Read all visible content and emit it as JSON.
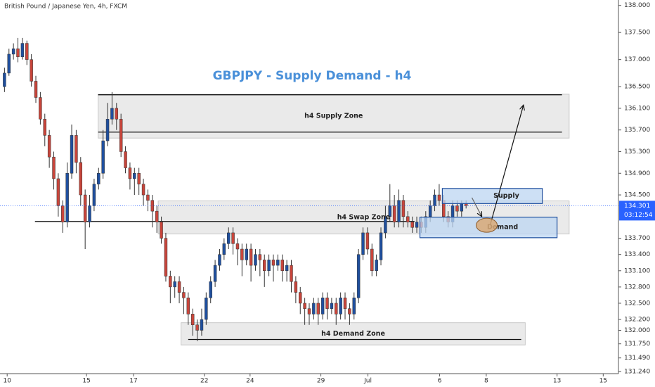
{
  "chart_data": {
    "type": "candlestick",
    "header": "British Pound / Japanese Yen, 4h, FXCM",
    "title": "GBPJPY - Supply Demand - h4",
    "up_color": "#1f4f9e",
    "down_color": "#c8453b",
    "xlim": [
      -1,
      137
    ],
    "ylim": [
      131.2,
      138.1
    ],
    "xticks": [
      {
        "value": 0.6,
        "label": "10"
      },
      {
        "value": 18.3,
        "label": "15"
      },
      {
        "value": 28.8,
        "label": "17"
      },
      {
        "value": 44.6,
        "label": "22"
      },
      {
        "value": 54.8,
        "label": "24"
      },
      {
        "value": 70.6,
        "label": "29"
      },
      {
        "value": 81.1,
        "label": "Jul"
      },
      {
        "value": 97.1,
        "label": "6"
      },
      {
        "value": 107.5,
        "label": "8"
      },
      {
        "value": 123.3,
        "label": "13"
      },
      {
        "value": 133.6,
        "label": "15"
      }
    ],
    "yticks": [
      {
        "value": 138,
        "label": "138.000"
      },
      {
        "value": 137.5,
        "label": "137.500"
      },
      {
        "value": 137,
        "label": "137.000"
      },
      {
        "value": 136.5,
        "label": "136.500"
      },
      {
        "value": 136.1,
        "label": "136.100"
      },
      {
        "value": 135.7,
        "label": "135.700"
      },
      {
        "value": 135.3,
        "label": "135.300"
      },
      {
        "value": 134.9,
        "label": "134.900"
      },
      {
        "value": 134.5,
        "label": "134.500"
      },
      {
        "value": 133.7,
        "label": "133.700"
      },
      {
        "value": 133.4,
        "label": "133.400"
      },
      {
        "value": 133.1,
        "label": "133.100"
      },
      {
        "value": 132.8,
        "label": "132.800"
      },
      {
        "value": 132.5,
        "label": "132.500"
      },
      {
        "value": 132.2,
        "label": "132.200"
      },
      {
        "value": 132,
        "label": "132.000"
      },
      {
        "value": 131.75,
        "label": "131.750"
      },
      {
        "value": 131.49,
        "label": "131.490"
      },
      {
        "value": 131.24,
        "label": "131.240"
      }
    ],
    "last_price": {
      "value": 134.301,
      "label": "134.301",
      "countdown": "03:12:54",
      "color": "#2962ff"
    },
    "open": [
      136.5,
      136.75,
      137.1,
      137.2,
      137.05,
      137.3,
      137,
      136.6,
      136.3,
      135.9,
      135.6,
      135.2,
      134.8,
      134.3,
      134,
      134.9,
      135.6,
      135.1,
      134.5,
      134,
      134.3,
      134.7,
      134.9,
      135.5,
      135.9,
      136.1,
      135.9,
      135.3,
      135,
      134.8,
      134.9,
      134.7,
      134.5,
      134.4,
      134.2,
      134,
      133.7,
      133,
      132.8,
      132.9,
      132.7,
      132.6,
      132.3,
      132.1,
      132,
      132.2,
      132.6,
      132.9,
      133.2,
      133.4,
      133.6,
      133.8,
      133.6,
      133.5,
      133.3,
      133.5,
      133.2,
      133.4,
      133.3,
      133.1,
      133.3,
      133.2,
      133.3,
      133.1,
      133.2,
      132.9,
      132.7,
      132.5,
      132.4,
      132.3,
      132.5,
      132.3,
      132.6,
      132.4,
      132.5,
      132.3,
      132.6,
      132.4,
      132.3,
      132.6,
      133.4,
      133.8,
      133.5,
      133.1,
      133.3,
      133.8,
      134.1,
      134.3,
      134,
      134.4,
      134.1,
      134,
      133.9,
      134,
      133.9,
      134.1,
      134.3,
      134.5,
      134.4,
      134.1,
      134,
      134.3,
      134.2,
      134.35
    ],
    "high": [
      136.85,
      137.2,
      137.3,
      137.4,
      137.4,
      137.35,
      137.1,
      136.7,
      136.4,
      136,
      135.7,
      135.3,
      134.9,
      134.4,
      135.1,
      135.8,
      135.7,
      135.2,
      134.6,
      134.5,
      134.8,
      135,
      135.7,
      136.2,
      136.4,
      136.2,
      136,
      135.4,
      135.1,
      135,
      135,
      134.8,
      134.6,
      134.5,
      134.3,
      134.1,
      133.8,
      133.1,
      133,
      133,
      132.8,
      132.7,
      132.4,
      132.2,
      132.4,
      132.7,
      133,
      133.3,
      133.5,
      133.7,
      133.9,
      133.9,
      133.7,
      133.6,
      133.6,
      133.6,
      133.5,
      133.5,
      133.4,
      133.4,
      133.4,
      133.4,
      133.4,
      133.3,
      133.3,
      133,
      132.8,
      132.6,
      132.5,
      132.6,
      132.6,
      132.7,
      132.7,
      132.6,
      132.6,
      132.7,
      132.7,
      132.5,
      132.7,
      133.5,
      133.9,
      133.9,
      133.6,
      133.4,
      133.9,
      134.3,
      134.7,
      134.5,
      134.6,
      134.5,
      134.2,
      134.1,
      134.1,
      134.1,
      134.2,
      134.4,
      134.6,
      134.7,
      134.5,
      134.2,
      134.4,
      134.4,
      134.4,
      134.4
    ],
    "low": [
      136.4,
      136.7,
      137,
      136.95,
      137,
      136.9,
      136.5,
      136.2,
      135.8,
      135.4,
      135,
      134.6,
      134.1,
      133.8,
      133.9,
      134.8,
      134.9,
      134.3,
      133.5,
      133.9,
      134.2,
      134.6,
      134.8,
      135.4,
      135.8,
      135.7,
      135.2,
      134.9,
      134.6,
      134.5,
      134.5,
      134.3,
      134.2,
      133.9,
      133.8,
      133.6,
      132.9,
      132.5,
      132.6,
      132.5,
      132.3,
      132.1,
      131.9,
      131.8,
      131.9,
      132.1,
      132.5,
      132.8,
      133.1,
      133.3,
      133.5,
      133.4,
      133.2,
      133,
      133.2,
      132.9,
      133.1,
      133,
      132.8,
      133,
      132.9,
      133.1,
      132.9,
      132.9,
      132.7,
      132.5,
      132.3,
      132.1,
      132.1,
      132.2,
      132.1,
      132.2,
      132.2,
      132.3,
      132.1,
      132.2,
      132.2,
      132.1,
      132.2,
      132.5,
      133.3,
      133.4,
      133,
      133,
      133.2,
      133.7,
      134,
      133.9,
      133.9,
      133.9,
      133.9,
      133.8,
      133.8,
      133.8,
      133.8,
      134,
      134.2,
      134.3,
      134,
      133.9,
      133.9,
      134.1,
      134.1,
      134.25
    ],
    "close": [
      136.75,
      137.1,
      137.2,
      137.05,
      137.3,
      137,
      136.6,
      136.3,
      135.9,
      135.6,
      135.2,
      134.8,
      134.3,
      134,
      134.9,
      135.6,
      135.1,
      134.5,
      134,
      134.3,
      134.7,
      134.9,
      135.5,
      135.9,
      136.1,
      135.9,
      135.3,
      135,
      134.8,
      134.9,
      134.7,
      134.5,
      134.4,
      134.2,
      134,
      133.7,
      133,
      132.8,
      132.9,
      132.7,
      132.6,
      132.3,
      132.1,
      132,
      132.2,
      132.6,
      132.9,
      133.2,
      133.4,
      133.6,
      133.8,
      133.6,
      133.5,
      133.3,
      133.5,
      133.2,
      133.4,
      133.3,
      133.1,
      133.3,
      133.2,
      133.3,
      133.1,
      133.2,
      132.9,
      132.7,
      132.5,
      132.4,
      132.3,
      132.5,
      132.3,
      132.6,
      132.4,
      132.5,
      132.3,
      132.6,
      132.4,
      132.3,
      132.6,
      133.4,
      133.8,
      133.5,
      133.1,
      133.3,
      133.8,
      134.1,
      134.3,
      134,
      134.4,
      134.1,
      134,
      133.9,
      134,
      133.9,
      134.1,
      134.3,
      134.5,
      134.4,
      134.1,
      134,
      134.3,
      134.2,
      134.35,
      134.301
    ],
    "zones": [
      {
        "label": "h4 Supply Zone",
        "x": [
          20.9,
          126
        ],
        "y": [
          135.55,
          136.36
        ],
        "color": "#e6e6e6"
      },
      {
        "label": "h4 Swap Zone",
        "x": [
          34.3,
          126
        ],
        "y": [
          133.78,
          134.39
        ],
        "color": "#e6e6e6"
      },
      {
        "label": "h4 Demand Zone",
        "x": [
          39.4,
          116.2
        ],
        "y": [
          131.73,
          132.14
        ],
        "color": "#e6e6e6"
      },
      {
        "label": "Supply",
        "x": [
          97.7,
          120
        ],
        "y": [
          134.34,
          134.62
        ],
        "color": "#bcd6f2"
      },
      {
        "label": "Demand",
        "x": [
          92.7,
          123.3
        ],
        "y": [
          133.71,
          134.09
        ],
        "color": "#bcd6f2"
      }
    ],
    "lines": [
      {
        "x": [
          20.9,
          124.4
        ],
        "y": 136.35
      },
      {
        "x": [
          20.9,
          124.4
        ],
        "y": 135.66
      },
      {
        "x": [
          6.8,
          91.5
        ],
        "y": 134.01
      },
      {
        "x": [
          41,
          115.3
        ],
        "y": 131.83
      }
    ],
    "arrows": [
      {
        "x": [
          108.4,
          115.8
        ],
        "y": [
          133.95,
          136.16
        ]
      },
      {
        "x": [
          104.3,
          106.5
        ],
        "y": [
          134.45,
          134.1
        ]
      }
    ],
    "marker": {
      "x": 107.6,
      "y": 133.94
    }
  }
}
